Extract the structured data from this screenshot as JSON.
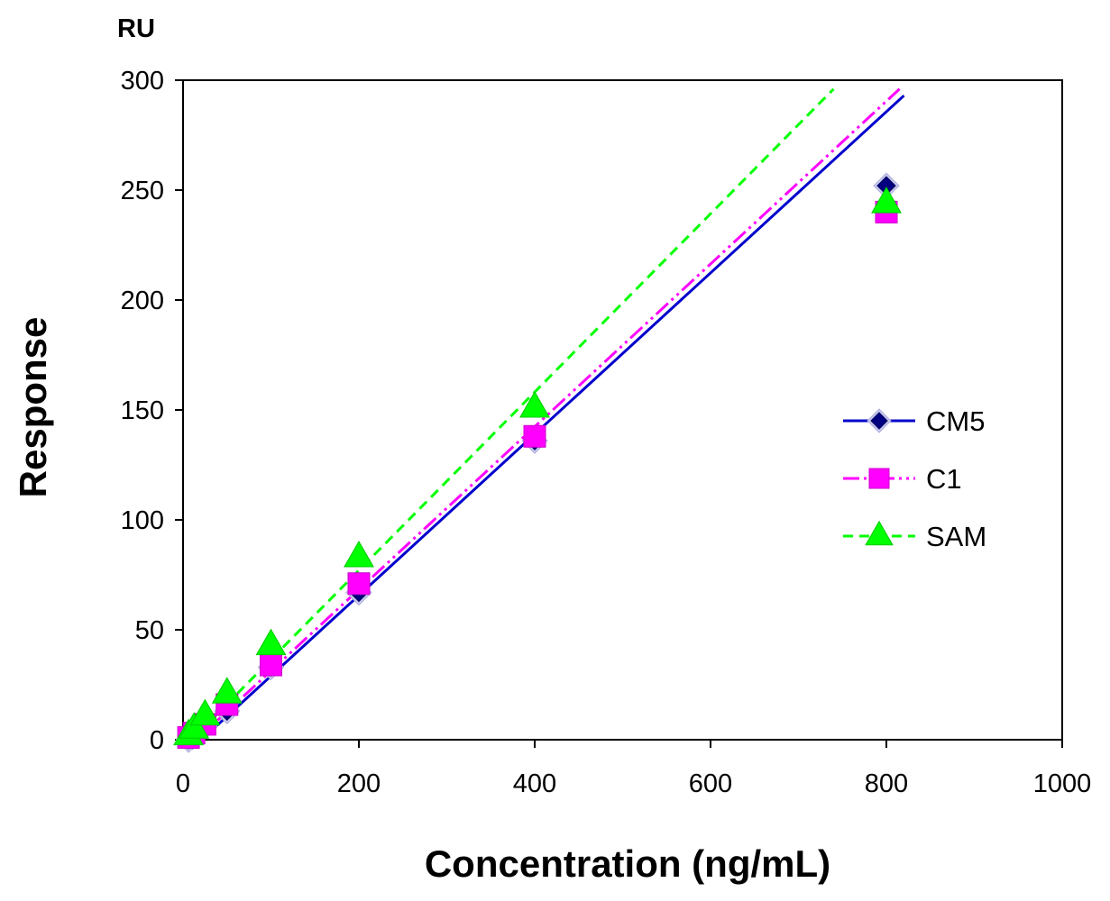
{
  "chart_data": {
    "type": "scatter",
    "unit_label": "RU",
    "xlabel": "Concentration (ng/mL)",
    "ylabel": "Response",
    "xlim": [
      0,
      1000
    ],
    "ylim": [
      0,
      300
    ],
    "x_ticks": [
      "0",
      "200",
      "400",
      "600",
      "800",
      "1000"
    ],
    "y_ticks": [
      "0",
      "50",
      "100",
      "150",
      "200",
      "250",
      "300"
    ],
    "grid": false,
    "legend_position": "right",
    "series": [
      {
        "name": "CM5",
        "color": "#0000cc",
        "marker": "diamond",
        "line_style": "solid",
        "points": [
          [
            6.25,
            0
          ],
          [
            12.5,
            3
          ],
          [
            25,
            6
          ],
          [
            50,
            13
          ],
          [
            100,
            33
          ],
          [
            200,
            67
          ],
          [
            400,
            136
          ],
          [
            800,
            252
          ]
        ],
        "trendline": {
          "x": [
            10,
            820
          ],
          "y": [
            -4,
            293
          ]
        }
      },
      {
        "name": "C1",
        "color": "#ff00ff",
        "marker": "square",
        "line_style": "dash-dot-dot",
        "points": [
          [
            6.25,
            1
          ],
          [
            12.5,
            3
          ],
          [
            25,
            7
          ],
          [
            50,
            16
          ],
          [
            100,
            34
          ],
          [
            200,
            71
          ],
          [
            400,
            138
          ],
          [
            800,
            240
          ]
        ],
        "trendline": {
          "x": [
            10,
            815
          ],
          "y": [
            -2,
            296
          ]
        }
      },
      {
        "name": "SAM",
        "color": "#00ff00",
        "marker": "triangle",
        "line_style": "dashed",
        "points": [
          [
            6.25,
            2
          ],
          [
            12.5,
            5
          ],
          [
            25,
            11
          ],
          [
            50,
            21
          ],
          [
            100,
            43
          ],
          [
            200,
            83
          ],
          [
            400,
            151
          ],
          [
            800,
            244
          ]
        ],
        "trendline": {
          "x": [
            10,
            740
          ],
          "y": [
            0,
            296
          ]
        }
      }
    ]
  }
}
